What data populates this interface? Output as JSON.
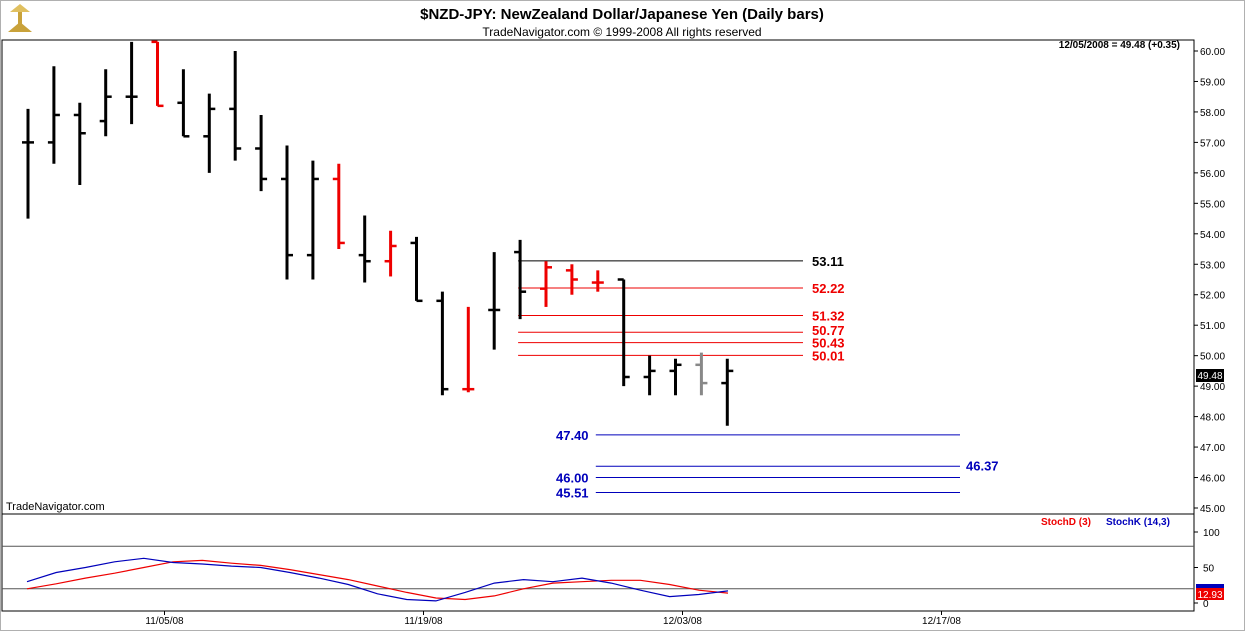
{
  "header": {
    "title": "$NZD-JPY:  NewZealand Dollar/Japanese Yen  (Daily bars)",
    "subtitle": "TradeNavigator.com © 1999-2008 All rights reserved",
    "quote": "12/05/2008 = 49.48 (+0.35)",
    "watermark": "TradeNavigator.com",
    "current_price_tag": "49.48"
  },
  "indicator": {
    "stoch_d_label": "StochD (3)",
    "stoch_k_label": "StochK (14,3)",
    "stoch_value_tag": "12.93"
  },
  "colors": {
    "up_bar": "#000000",
    "down_bar": "#ee0000",
    "neutral_bar": "#888888",
    "fib_line": "#ee0000",
    "target_line": "#0000bb",
    "stoch_d": "#ee0000",
    "stoch_k": "#0000bb"
  },
  "chart_data": [
    {
      "type": "ohlc",
      "ylim": [
        45,
        60
      ],
      "y_ticks": [
        "60.00",
        "59.00",
        "58.00",
        "57.00",
        "56.00",
        "55.00",
        "54.00",
        "53.00",
        "52.00",
        "51.00",
        "50.00",
        "49.00",
        "48.00",
        "47.00",
        "46.00",
        "45.00"
      ],
      "x_ticks": [
        {
          "label": "11/05/08",
          "index": 5
        },
        {
          "label": "11/19/08",
          "index": 15
        },
        {
          "label": "12/03/08",
          "index": 25
        },
        {
          "label": "12/17/08",
          "index": 35
        }
      ],
      "bars": [
        {
          "o": 57.0,
          "h": 58.1,
          "l": 54.5,
          "c": 57.0,
          "color": "up"
        },
        {
          "o": 57.0,
          "h": 59.5,
          "l": 56.3,
          "c": 57.9,
          "color": "up"
        },
        {
          "o": 57.9,
          "h": 58.3,
          "l": 55.6,
          "c": 57.3,
          "color": "up"
        },
        {
          "o": 57.7,
          "h": 59.4,
          "l": 57.2,
          "c": 58.5,
          "color": "up"
        },
        {
          "o": 58.5,
          "h": 60.3,
          "l": 57.6,
          "c": 58.5,
          "color": "up"
        },
        {
          "o": 60.3,
          "h": 60.3,
          "l": 58.2,
          "c": 58.2,
          "color": "down"
        },
        {
          "o": 58.3,
          "h": 59.4,
          "l": 57.2,
          "c": 57.2,
          "color": "up"
        },
        {
          "o": 57.2,
          "h": 58.6,
          "l": 56.0,
          "c": 58.1,
          "color": "up"
        },
        {
          "o": 58.1,
          "h": 60.0,
          "l": 56.4,
          "c": 56.8,
          "color": "up"
        },
        {
          "o": 56.8,
          "h": 57.9,
          "l": 55.4,
          "c": 55.8,
          "color": "up"
        },
        {
          "o": 55.8,
          "h": 56.9,
          "l": 52.5,
          "c": 53.3,
          "color": "up"
        },
        {
          "o": 53.3,
          "h": 56.4,
          "l": 52.5,
          "c": 55.8,
          "color": "up"
        },
        {
          "o": 55.8,
          "h": 56.3,
          "l": 53.5,
          "c": 53.7,
          "color": "down"
        },
        {
          "o": 53.3,
          "h": 54.6,
          "l": 52.4,
          "c": 53.1,
          "color": "up"
        },
        {
          "o": 53.1,
          "h": 54.1,
          "l": 52.6,
          "c": 53.6,
          "color": "down"
        },
        {
          "o": 53.7,
          "h": 53.9,
          "l": 51.8,
          "c": 51.8,
          "color": "up"
        },
        {
          "o": 51.8,
          "h": 52.1,
          "l": 48.7,
          "c": 48.9,
          "color": "up"
        },
        {
          "o": 48.9,
          "h": 51.6,
          "l": 48.8,
          "c": 48.9,
          "color": "down"
        },
        {
          "o": 51.5,
          "h": 53.4,
          "l": 50.2,
          "c": 51.5,
          "color": "up"
        },
        {
          "o": 53.4,
          "h": 53.8,
          "l": 51.2,
          "c": 52.1,
          "color": "up"
        },
        {
          "o": 52.2,
          "h": 53.1,
          "l": 51.6,
          "c": 52.9,
          "color": "down"
        },
        {
          "o": 52.8,
          "h": 53.0,
          "l": 52.0,
          "c": 52.5,
          "color": "down"
        },
        {
          "o": 52.4,
          "h": 52.8,
          "l": 52.1,
          "c": 52.4,
          "color": "down"
        },
        {
          "o": 52.5,
          "h": 52.5,
          "l": 49.0,
          "c": 49.3,
          "color": "up"
        },
        {
          "o": 49.3,
          "h": 50.0,
          "l": 48.7,
          "c": 49.5,
          "color": "up"
        },
        {
          "o": 49.5,
          "h": 49.9,
          "l": 48.7,
          "c": 49.7,
          "color": "up"
        },
        {
          "o": 49.7,
          "h": 50.1,
          "l": 48.7,
          "c": 49.1,
          "color": "neutral"
        },
        {
          "o": 49.1,
          "h": 49.9,
          "l": 47.7,
          "c": 49.5,
          "color": "up"
        }
      ],
      "levels": [
        {
          "value": 53.11,
          "label": "53.11",
          "color": "#000000",
          "from": 19,
          "to": 30
        },
        {
          "value": 52.22,
          "label": "52.22",
          "color": "#ee0000",
          "from": 19,
          "to": 30
        },
        {
          "value": 51.32,
          "label": "51.32",
          "color": "#ee0000",
          "from": 19,
          "to": 30
        },
        {
          "value": 50.77,
          "label": "50.77",
          "color": "#ee0000",
          "from": 19,
          "to": 30
        },
        {
          "value": 50.43,
          "label": "50.43",
          "color": "#ee0000",
          "from": 19,
          "to": 30
        },
        {
          "value": 50.01,
          "label": "50.01",
          "color": "#ee0000",
          "from": 19,
          "to": 30
        },
        {
          "value": 47.4,
          "label": "47.40",
          "color": "#0000bb",
          "from": 22,
          "to": 36
        },
        {
          "value": 46.37,
          "label": "46.37",
          "color": "#0000bb",
          "from": 22,
          "to": 36
        },
        {
          "value": 46.0,
          "label": "46.00",
          "color": "#0000bb",
          "from": 22,
          "to": 36
        },
        {
          "value": 45.51,
          "label": "45.51",
          "color": "#0000bb",
          "from": 22,
          "to": 36
        }
      ]
    },
    {
      "type": "line",
      "ylim": [
        0,
        100
      ],
      "y_ticks": [
        "100",
        "50",
        "0"
      ],
      "hlines": [
        80,
        20
      ],
      "series": [
        {
          "name": "StochD (3)",
          "values": [
            20,
            27,
            35,
            42,
            50,
            58,
            60,
            56,
            53,
            47,
            40,
            33,
            24,
            15,
            7,
            5,
            10,
            20,
            28,
            30,
            32,
            32,
            26,
            18,
            14
          ]
        },
        {
          "name": "StochK (14,3)",
          "values": [
            30,
            43,
            50,
            58,
            63,
            57,
            55,
            52,
            50,
            43,
            35,
            26,
            13,
            5,
            3,
            15,
            28,
            33,
            30,
            35,
            28,
            18,
            9,
            12,
            17
          ]
        }
      ]
    }
  ]
}
